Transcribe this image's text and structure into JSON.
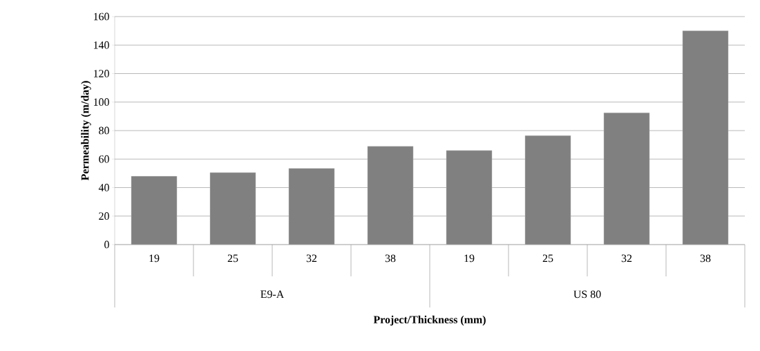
{
  "chart_data": {
    "type": "bar",
    "xlabel": "Project/Thickness (mm)",
    "ylabel": "Permeability (m/day)",
    "categories": [
      "19",
      "25",
      "32",
      "38",
      "19",
      "25",
      "32",
      "38"
    ],
    "values": [
      48,
      50.5,
      53.5,
      69,
      66,
      76.5,
      92.5,
      150
    ],
    "color": "#808080",
    "ylim": [
      0,
      160
    ],
    "yticks": [
      0,
      20,
      40,
      60,
      80,
      100,
      120,
      140,
      160
    ],
    "grid": "y",
    "annotations": [
      "E9-A",
      "US 80"
    ]
  }
}
